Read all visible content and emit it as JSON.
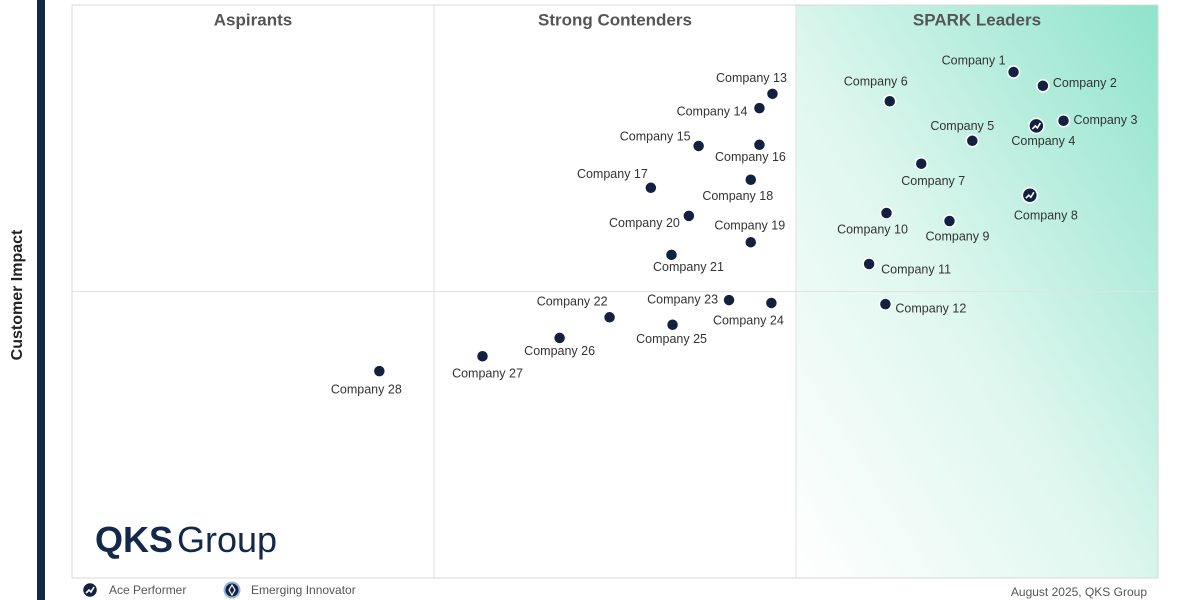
{
  "chart_data": {
    "type": "scatter",
    "y_label": "Customer Impact",
    "quadrants": [
      "Aspirants",
      "Strong Contenders",
      "SPARK Leaders"
    ],
    "xlim": [
      0,
      100
    ],
    "ylim": [
      0,
      100
    ],
    "x": [
      86.7,
      89.4,
      91.3,
      88.8,
      82.9,
      75.3,
      78.2,
      88.2,
      80.8,
      75.0,
      73.4,
      74.9,
      64.5,
      63.3,
      57.7,
      63.3,
      53.3,
      62.5,
      62.5,
      56.8,
      55.2,
      49.5,
      60.5,
      64.4,
      55.3,
      44.9,
      37.8,
      28.3
    ],
    "series": [
      {
        "color": "#12213f",
        "values": [
          88.3,
          85.9,
          79.8,
          78.9,
          76.3,
          83.2,
          72.3,
          66.8,
          62.3,
          63.7,
          54.8,
          47.8,
          84.5,
          82.0,
          75.4,
          75.6,
          68.1,
          69.5,
          58.6,
          63.2,
          56.4,
          45.5,
          48.5,
          48.0,
          44.2,
          41.9,
          38.7,
          36.1
        ],
        "point_labels": [
          "Company 1",
          "Company 2",
          "Company 3",
          "Company 4",
          "Company 5",
          "Company 6",
          "Company 7",
          "Company 8",
          "Company 9",
          "Company 10",
          "Company 11",
          "Company 12",
          "Company 13",
          "Company 14",
          "Company 15",
          "Company 16",
          "Company 17",
          "Company 18",
          "Company 19",
          "Company 20",
          "Company 21",
          "Company 22",
          "Company 23",
          "Company 24",
          "Company 25",
          "Company 26",
          "Company 27",
          "Company 28"
        ],
        "awards": [
          null,
          null,
          null,
          0,
          null,
          null,
          null,
          0,
          null,
          null,
          null,
          null,
          null,
          null,
          null,
          null,
          null,
          null,
          null,
          null,
          null,
          null,
          null,
          null,
          null,
          null,
          null,
          null
        ]
      }
    ],
    "legend": [
      "Ace Performer",
      "Emerging Innovator"
    ],
    "logo": {
      "bold": "QKS",
      "regular": "Group"
    },
    "footer": "August 2025, QKS Group"
  }
}
